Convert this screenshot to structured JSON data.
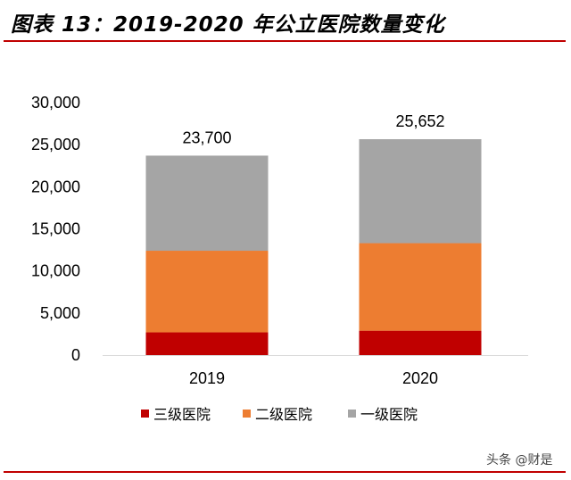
{
  "header": {
    "title": "图表 13：2019-2020 年公立医院数量变化"
  },
  "watermark": "头条 @财是",
  "colors": {
    "rule": "#c00000"
  },
  "chart_data": {
    "type": "bar",
    "stacked": true,
    "title": "",
    "xlabel": "",
    "ylabel": "",
    "categories": [
      "2019",
      "2020"
    ],
    "ylim": [
      0,
      30000
    ],
    "yticks": [
      0,
      5000,
      10000,
      15000,
      20000,
      25000,
      30000
    ],
    "ytick_labels": [
      "0",
      "5,000",
      "10,000",
      "15,000",
      "20,000",
      "25,000",
      "30,000"
    ],
    "series": [
      {
        "name": "三级医院",
        "values": [
          2700,
          2900
        ],
        "color": "#c00000"
      },
      {
        "name": "二级医院",
        "values": [
          9700,
          10400
        ],
        "color": "#ed7d31"
      },
      {
        "name": "一级医院",
        "values": [
          11300,
          12352
        ],
        "color": "#a5a5a5"
      }
    ],
    "totals": [
      23700,
      25652
    ],
    "total_labels": [
      "23,700",
      "25,652"
    ],
    "grid": false,
    "legend": "bottom"
  }
}
